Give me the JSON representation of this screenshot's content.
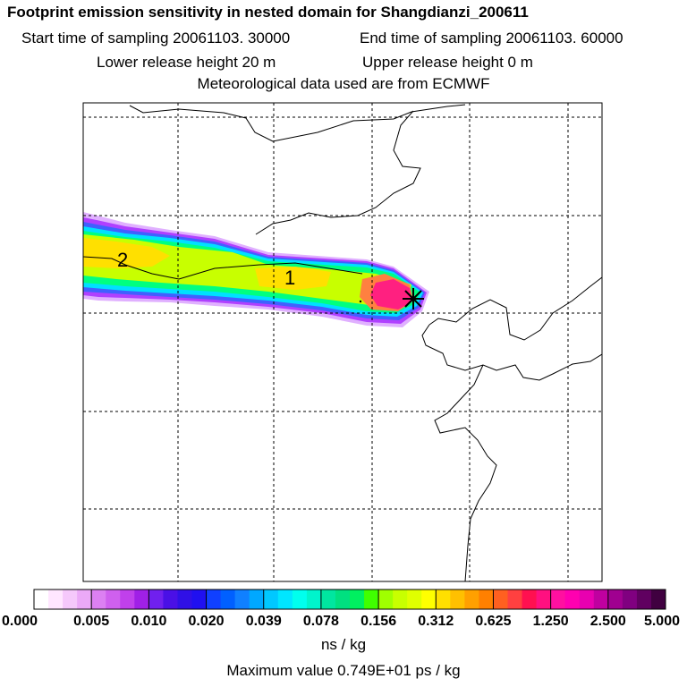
{
  "header": {
    "title": "Footprint emission sensitivity in nested domain for Shangdianzi_200611",
    "start_label": "Start time of sampling 20061103. 30000",
    "end_label": "End time of sampling 20061103. 60000",
    "lower_label": "Lower release height   20 m",
    "upper_label": "Upper release height    0 m",
    "met_label": "Meteorological data used are from ECMWF"
  },
  "map": {
    "contour_labels": [
      "2",
      "1"
    ],
    "receptor_marker": "star-receptor",
    "plume_colors": [
      "#e0b0ff",
      "#b040ff",
      "#4060ff",
      "#00e0ff",
      "#00ff80",
      "#c8ff00",
      "#ffe000",
      "#ff8040",
      "#ff2080",
      "#ff0090"
    ]
  },
  "colorbar": {
    "ticks": [
      "0.000",
      "0.005",
      "0.010",
      "0.020",
      "0.039",
      "0.078",
      "0.156",
      "0.312",
      "0.625",
      "1.250",
      "2.500",
      "5.000"
    ],
    "colors": [
      "#ffffff",
      "#ffe6ff",
      "#f5c8fb",
      "#eba9f7",
      "#dc80f2",
      "#cf60ee",
      "#c040eb",
      "#a020e6",
      "#7020ee",
      "#4a10e6",
      "#3010e6",
      "#2010f0",
      "#1040ff",
      "#0060ff",
      "#1080ff",
      "#00a8ff",
      "#00c8ff",
      "#00e6ff",
      "#00ffee",
      "#00f4cc",
      "#00e6a0",
      "#00e080",
      "#00f060",
      "#40ff00",
      "#a0ff00",
      "#c8ff00",
      "#e0ff00",
      "#ffff00",
      "#ffe000",
      "#ffc000",
      "#ffa000",
      "#ff8000",
      "#ff6020",
      "#ff4040",
      "#ff1050",
      "#ff1080",
      "#ff10a0",
      "#ff00b0",
      "#e800b0",
      "#c000a0",
      "#a00090",
      "#800080",
      "#600060",
      "#400040"
    ],
    "units": "ns / kg",
    "max_value": "Maximum value  0.749E+01 ps / kg"
  }
}
